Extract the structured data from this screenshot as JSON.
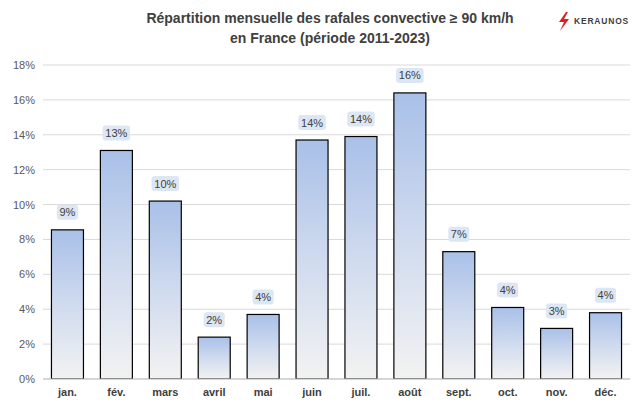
{
  "chart_data": {
    "type": "bar",
    "title": "Répartition mensuelle des rafales convective ≥ 90 km/h\nen France (période 2011-2023)",
    "annotations": [
      "KERAUNOS"
    ],
    "categories": [
      "jan.",
      "fév.",
      "mars",
      "avril",
      "mai",
      "juin",
      "juil.",
      "août",
      "sept.",
      "oct.",
      "nov.",
      "déc."
    ],
    "values": [
      8.55,
      13.1,
      10.2,
      2.4,
      3.7,
      13.7,
      13.9,
      16.4,
      7.3,
      4.1,
      2.9,
      3.8
    ],
    "value_labels": [
      "9%",
      "13%",
      "10%",
      "2%",
      "4%",
      "14%",
      "14%",
      "16%",
      "7%",
      "4%",
      "3%",
      "4%"
    ],
    "color": "#a9c0e8",
    "ylim": [
      0,
      18
    ],
    "yticks": [
      {
        "value": 0,
        "label": "0%"
      },
      {
        "value": 2,
        "label": "2%"
      },
      {
        "value": 4,
        "label": "4%"
      },
      {
        "value": 6,
        "label": "6%"
      },
      {
        "value": 8,
        "label": "8%"
      },
      {
        "value": 10,
        "label": "10%"
      },
      {
        "value": 12,
        "label": "12%"
      },
      {
        "value": 14,
        "label": "14%"
      },
      {
        "value": 16,
        "label": "16%"
      },
      {
        "value": 18,
        "label": "18%"
      }
    ],
    "grid": true,
    "data_labels": true
  }
}
